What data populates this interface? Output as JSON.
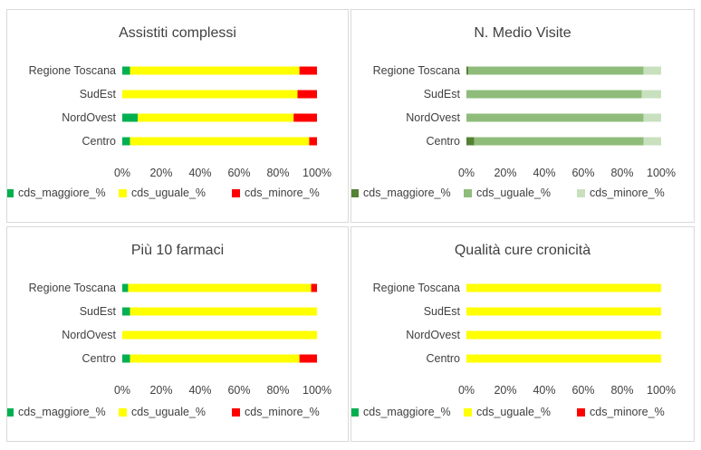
{
  "chart_data": [
    {
      "type": "bar",
      "orientation": "horizontal",
      "stacked": "percent",
      "title": "Assistiti complessi",
      "categories": [
        "Regione Toscana",
        "SudEst",
        "NordOvest",
        "Centro"
      ],
      "series": [
        {
          "name": "cds_maggiore_%",
          "color": "#00b050",
          "values": [
            4,
            0,
            8,
            4
          ]
        },
        {
          "name": "cds_uguale_%",
          "color": "#ffff00",
          "values": [
            87,
            90,
            80,
            92
          ]
        },
        {
          "name": "cds_minore_%",
          "color": "#ff0000",
          "values": [
            9,
            10,
            12,
            4
          ]
        }
      ],
      "xlim": [
        0,
        100
      ],
      "xticks": [
        "0%",
        "20%",
        "40%",
        "60%",
        "80%",
        "100%"
      ],
      "legend": "bottom"
    },
    {
      "type": "bar",
      "orientation": "horizontal",
      "stacked": "percent",
      "title": "N. Medio Visite",
      "categories": [
        "Regione Toscana",
        "SudEst",
        "NordOvest",
        "Centro"
      ],
      "series": [
        {
          "name": "cds_maggiore_%",
          "color": "#548235",
          "values": [
            1,
            0,
            0,
            4
          ]
        },
        {
          "name": "cds_uguale_%",
          "color": "#8fbc7a",
          "values": [
            90,
            90,
            91,
            87
          ]
        },
        {
          "name": "cds_minore_%",
          "color": "#c9e0bf",
          "values": [
            9,
            10,
            9,
            9
          ]
        }
      ],
      "xlim": [
        0,
        100
      ],
      "xticks": [
        "0%",
        "20%",
        "40%",
        "60%",
        "80%",
        "100%"
      ],
      "legend": "bottom"
    },
    {
      "type": "bar",
      "orientation": "horizontal",
      "stacked": "percent",
      "title": "Più 10 farmaci",
      "categories": [
        "Regione Toscana",
        "SudEst",
        "NordOvest",
        "Centro"
      ],
      "series": [
        {
          "name": "cds_maggiore_%",
          "color": "#00b050",
          "values": [
            3,
            4,
            0,
            4
          ]
        },
        {
          "name": "cds_uguale_%",
          "color": "#ffff00",
          "values": [
            94,
            96,
            100,
            87
          ]
        },
        {
          "name": "cds_minore_%",
          "color": "#ff0000",
          "values": [
            3,
            0,
            0,
            9
          ]
        }
      ],
      "xlim": [
        0,
        100
      ],
      "xticks": [
        "0%",
        "20%",
        "40%",
        "60%",
        "80%",
        "100%"
      ],
      "legend": "bottom"
    },
    {
      "type": "bar",
      "orientation": "horizontal",
      "stacked": "percent",
      "title": "Qualità cure cronicità",
      "categories": [
        "Regione Toscana",
        "SudEst",
        "NordOvest",
        "Centro"
      ],
      "series": [
        {
          "name": "cds_maggiore_%",
          "color": "#00b050",
          "values": [
            0,
            0,
            0,
            0
          ]
        },
        {
          "name": "cds_uguale_%",
          "color": "#ffff00",
          "values": [
            100,
            100,
            100,
            100
          ]
        },
        {
          "name": "cds_minore_%",
          "color": "#ff0000",
          "values": [
            0,
            0,
            0,
            0
          ]
        }
      ],
      "xlim": [
        0,
        100
      ],
      "xticks": [
        "0%",
        "20%",
        "40%",
        "60%",
        "80%",
        "100%"
      ],
      "legend": "bottom"
    }
  ]
}
